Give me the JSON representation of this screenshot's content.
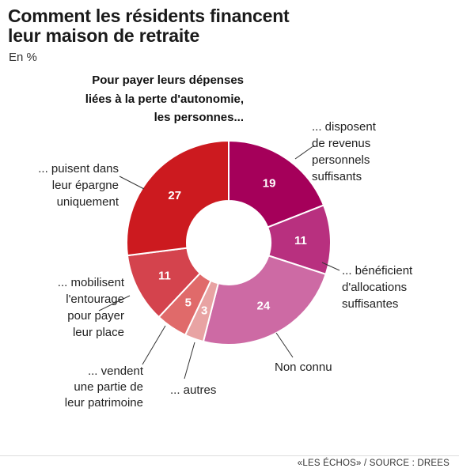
{
  "title_line1": "Comment les résidents financent",
  "title_line2": "leur maison de retraite",
  "subtitle": "En %",
  "source": "«LES ÉCHOS» / SOURCE : DREES",
  "chart_data": {
    "type": "pie",
    "variant": "donut",
    "heading": [
      "Pour payer leurs dépenses",
      "liées à la perte d'autonomie,",
      "les personnes..."
    ],
    "slices": [
      {
        "label": [
          "... disposent",
          "de revenus",
          "personnels",
          "suffisants"
        ],
        "value": 19,
        "color": "#a5005a"
      },
      {
        "label": [
          "... bénéficient",
          "d'allocations",
          "suffisantes"
        ],
        "value": 11,
        "color": "#b8307f"
      },
      {
        "label": [
          "Non connu"
        ],
        "value": 24,
        "color": "#cd6aa4"
      },
      {
        "label": [
          "... autres"
        ],
        "value": 3,
        "color": "#e8a3a3"
      },
      {
        "label": [
          "... vendent",
          "une partie de",
          "leur patrimoine"
        ],
        "value": 5,
        "color": "#e06a6a"
      },
      {
        "label": [
          "... mobilisent",
          "l'entourage",
          "pour payer",
          "leur place"
        ],
        "value": 11,
        "color": "#d4434d"
      },
      {
        "label": [
          "... puisent dans",
          "leur épargne",
          "uniquement"
        ],
        "value": 27,
        "color": "#cc1a1f"
      }
    ]
  }
}
